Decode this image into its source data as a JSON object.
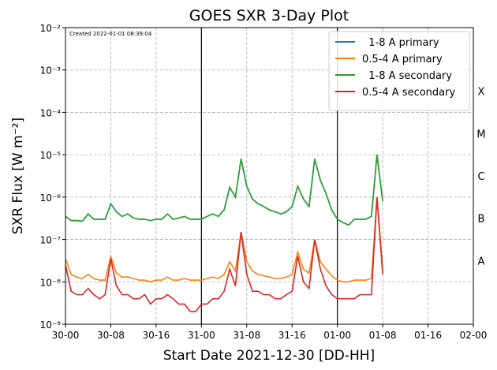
{
  "chart_data": {
    "type": "line",
    "title": "GOES SXR 3-Day Plot",
    "x_label": "Start Date 2021-12-30 [DD-HH]",
    "y_label": "SXR Flux [W m⁻²]",
    "annotation": "Created 2022-01-01 08:39:04",
    "log_y": true,
    "grid": true,
    "legend": "upper right",
    "xlim": [
      0,
      72
    ],
    "xticks": [
      {
        "value": 0,
        "label": "30-00"
      },
      {
        "value": 8,
        "label": "30-08"
      },
      {
        "value": 16,
        "label": "30-16"
      },
      {
        "value": 24,
        "label": "31-00"
      },
      {
        "value": 32,
        "label": "31-08"
      },
      {
        "value": 40,
        "label": "31-16"
      },
      {
        "value": 48,
        "label": "01-00"
      },
      {
        "value": 56,
        "label": "01-08"
      },
      {
        "value": 64,
        "label": "01-16"
      },
      {
        "value": 72,
        "label": "02-00"
      }
    ],
    "ylim": [
      1e-09,
      0.01
    ],
    "yticks": [
      {
        "value": 1e-09,
        "label": "10⁻⁹"
      },
      {
        "value": 1e-08,
        "label": "10⁻⁸"
      },
      {
        "value": 1e-07,
        "label": "10⁻⁷"
      },
      {
        "value": 1e-06,
        "label": "10⁻⁶"
      },
      {
        "value": 1e-05,
        "label": "10⁻⁵"
      },
      {
        "value": 0.0001,
        "label": "10⁻⁴"
      },
      {
        "value": 0.001,
        "label": "10⁻³"
      },
      {
        "value": 0.01,
        "label": "10⁻²"
      }
    ],
    "vlines": [
      24,
      48
    ],
    "flare_classes": [
      {
        "label": "A",
        "value": 1e-08
      },
      {
        "label": "B",
        "value": 1e-07
      },
      {
        "label": "C",
        "value": 1e-06
      },
      {
        "label": "M",
        "value": 1e-05
      },
      {
        "label": "X",
        "value": 0.0001
      }
    ],
    "x": [
      0,
      1,
      2,
      3,
      4,
      5,
      6,
      7,
      8,
      9,
      10,
      11,
      12,
      13,
      14,
      15,
      16,
      17,
      18,
      19,
      20,
      21,
      22,
      23,
      24,
      25,
      26,
      27,
      28,
      29,
      30,
      31,
      32,
      33,
      34,
      35,
      36,
      37,
      38,
      39,
      40,
      41,
      42,
      43,
      44,
      45,
      46,
      47,
      48,
      49,
      50,
      51,
      52,
      53,
      54,
      55,
      56
    ],
    "series": [
      {
        "name": "  1-8 A primary",
        "color": "#1f77b4",
        "values": [
          3.5e-07,
          2.8e-07,
          2.8e-07,
          2.7e-07,
          4e-07,
          3e-07,
          3e-07,
          3e-07,
          7e-07,
          4.5e-07,
          3.5e-07,
          4e-07,
          3.2e-07,
          3e-07,
          3e-07,
          2.8e-07,
          3e-07,
          3e-07,
          4e-07,
          3e-07,
          3.2e-07,
          3.5e-07,
          3e-07,
          3e-07,
          3e-07,
          3.5e-07,
          4e-07,
          3.5e-07,
          5e-07,
          1.7e-06,
          1e-06,
          8e-06,
          1.8e-06,
          9e-07,
          7e-07,
          6e-07,
          5e-07,
          4.5e-07,
          4e-07,
          4.5e-07,
          6e-07,
          1.8e-06,
          9e-07,
          6e-07,
          8e-06,
          2.5e-06,
          1.2e-06,
          5e-07,
          3e-07,
          2.5e-07,
          2.2e-07,
          3e-07,
          3e-07,
          3e-07,
          3.5e-07,
          1e-05,
          8e-07
        ]
      },
      {
        "name": "0.5-4 A primary",
        "color": "#ff7f0e",
        "values": [
          3.5e-08,
          1.5e-08,
          1.3e-08,
          1.2e-08,
          1.5e-08,
          1.2e-08,
          1.1e-08,
          1.1e-08,
          4e-08,
          1.6e-08,
          1.3e-08,
          1.3e-08,
          1.2e-08,
          1.1e-08,
          1.1e-08,
          1e-08,
          1.1e-08,
          1.1e-08,
          1.3e-08,
          1.1e-08,
          1.1e-08,
          1.2e-08,
          1.1e-08,
          1.1e-08,
          1.1e-08,
          1.2e-08,
          1.3e-08,
          1.2e-08,
          1.5e-08,
          3e-08,
          1.8e-08,
          1.5e-07,
          3e-08,
          1.8e-08,
          1.5e-08,
          1.4e-08,
          1.3e-08,
          1.2e-08,
          1.2e-08,
          1.3e-08,
          1.5e-08,
          5e-08,
          2e-08,
          1.6e-08,
          1e-07,
          3e-08,
          2e-08,
          1.4e-08,
          1.1e-08,
          1e-08,
          1e-08,
          1.1e-08,
          1.1e-08,
          1.1e-08,
          1.2e-08,
          1e-06,
          2e-08
        ]
      },
      {
        "name": "  1-8 A secondary",
        "color": "#2ca02c",
        "values": [
          3.5e-07,
          2.8e-07,
          2.8e-07,
          2.7e-07,
          4e-07,
          3e-07,
          3e-07,
          3e-07,
          7e-07,
          4.5e-07,
          3.5e-07,
          4e-07,
          3.2e-07,
          3e-07,
          3e-07,
          2.8e-07,
          3e-07,
          3e-07,
          4e-07,
          3e-07,
          3.2e-07,
          3.5e-07,
          3e-07,
          3e-07,
          3e-07,
          3.5e-07,
          4e-07,
          3.5e-07,
          5e-07,
          1.7e-06,
          1e-06,
          8e-06,
          1.8e-06,
          9e-07,
          7e-07,
          6e-07,
          5e-07,
          4.5e-07,
          4e-07,
          4.5e-07,
          6e-07,
          1.8e-06,
          9e-07,
          6e-07,
          8e-06,
          2.5e-06,
          1.2e-06,
          5e-07,
          3e-07,
          2.5e-07,
          2.2e-07,
          3e-07,
          3e-07,
          3e-07,
          3.5e-07,
          1e-05,
          8e-07
        ]
      },
      {
        "name": "0.5-4 A secondary",
        "color": "#d62728",
        "values": [
          2.5e-08,
          6e-09,
          5e-09,
          5e-09,
          7e-09,
          5e-09,
          4e-09,
          5e-09,
          3.5e-08,
          8e-09,
          5e-09,
          5e-09,
          4e-09,
          4e-09,
          5e-09,
          3e-09,
          4e-09,
          4e-09,
          5e-09,
          4e-09,
          3e-09,
          3e-09,
          2e-09,
          2e-09,
          3e-09,
          3e-09,
          4e-09,
          4e-09,
          6e-09,
          2e-08,
          8e-09,
          1.5e-07,
          1.5e-08,
          6e-09,
          6e-09,
          5e-09,
          5e-09,
          4e-09,
          4e-09,
          5e-09,
          6e-09,
          4e-08,
          1e-08,
          7e-09,
          1e-07,
          2e-08,
          8e-09,
          5e-09,
          4e-09,
          4e-09,
          4e-09,
          4e-09,
          5e-09,
          5e-09,
          5e-09,
          1e-06,
          1.5e-08
        ]
      }
    ]
  }
}
